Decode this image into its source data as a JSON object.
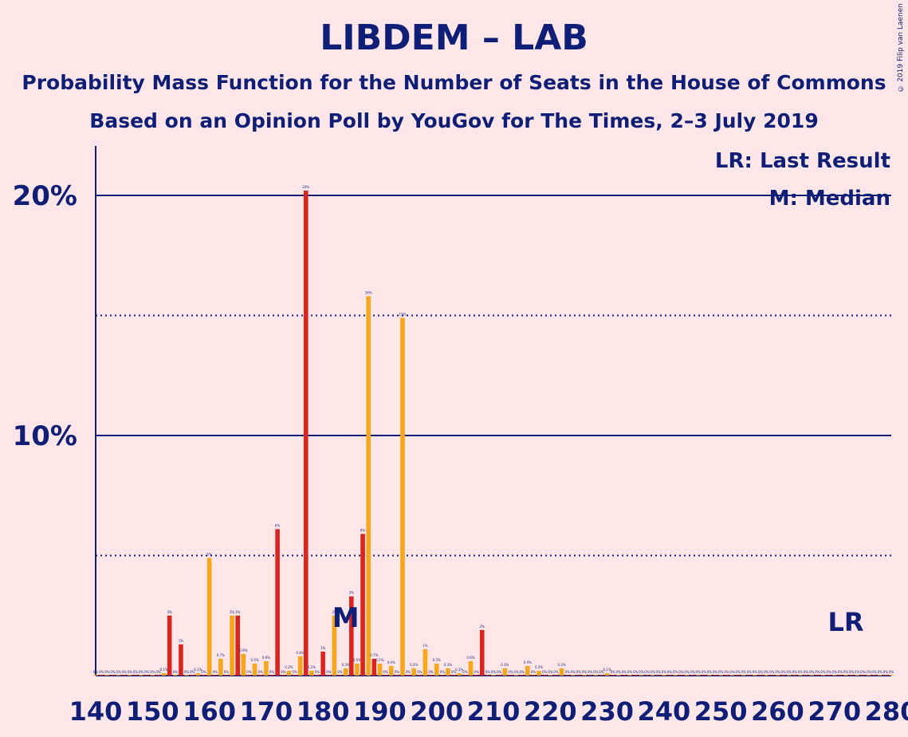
{
  "title": "LIBDEM – LAB",
  "subtitle1": "Probability Mass Function for the Number of Seats in the House of Commons",
  "subtitle2": "Based on an Opinion Poll by YouGov for The Times, 2–3 July 2019",
  "copyright": "© 2019 Filip van Laenen",
  "legend": {
    "lr": "LR: Last Result",
    "m": "M: Median"
  },
  "markers": {
    "median_label": "M",
    "median_seat": 184,
    "lr_label": "LR",
    "lr_seat": 272
  },
  "colors": {
    "background": "#FFE6E8",
    "text": "#0F1F78",
    "bar_red": "#DC241F",
    "bar_orange": "#FAA61A"
  },
  "chart_data": {
    "type": "bar",
    "xlabel": "",
    "ylabel": "",
    "xlim": [
      140,
      280
    ],
    "ylim": [
      0,
      22
    ],
    "yticks": [
      10,
      20
    ],
    "ytick_labels": [
      "10%",
      "20%"
    ],
    "dotted_gridlines": [
      5,
      15
    ],
    "xticks": [
      140,
      150,
      160,
      170,
      180,
      190,
      200,
      210,
      220,
      230,
      240,
      250,
      260,
      270,
      280
    ],
    "series": [
      {
        "color": "red",
        "x": [
          153,
          155,
          165,
          172,
          177,
          180,
          185,
          187,
          189,
          194,
          208
        ],
        "values": [
          2.5,
          1.3,
          2.5,
          6.1,
          20.2,
          1.0,
          3.3,
          5.9,
          0.7,
          0.5,
          1.9
        ]
      },
      {
        "color": "orange",
        "x": [
          152,
          158,
          160,
          162,
          164,
          166,
          168,
          170,
          174,
          176,
          178,
          182,
          184,
          186,
          188,
          190,
          192,
          194,
          196,
          198,
          200,
          202,
          204,
          206,
          212,
          216,
          218,
          222,
          230
        ],
        "values": [
          0.1,
          0.1,
          4.9,
          0.7,
          2.5,
          0.9,
          0.5,
          0.6,
          0.2,
          0.8,
          0.2,
          2.5,
          0.3,
          0.5,
          15.8,
          0.5,
          0.4,
          14.9,
          0.3,
          1.1,
          0.5,
          0.3,
          0.1,
          0.6,
          0.3,
          0.4,
          0.2,
          0.3,
          0.1
        ]
      }
    ]
  }
}
